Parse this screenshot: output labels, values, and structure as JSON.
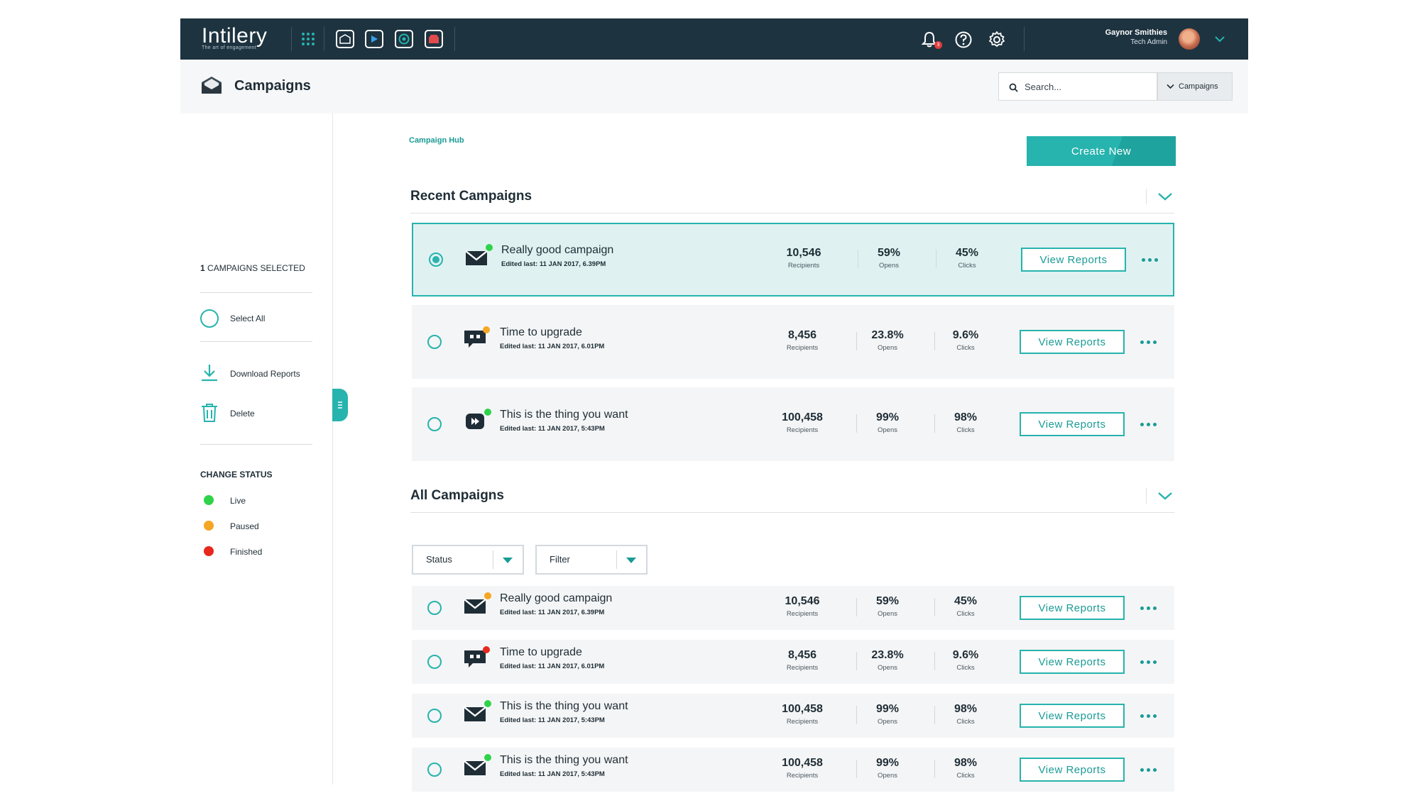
{
  "colors": {
    "topbar": "#1e3340",
    "accent": "#27b3ae",
    "live": "#2fd34a",
    "paused": "#f5a623",
    "finished": "#e8271d"
  },
  "topbar": {
    "logo_name": "Intilery",
    "logo_tagline": "The art of engagement",
    "apps": [
      "campaign-app-icon",
      "media-app-icon",
      "target-app-icon",
      "alert-app-icon"
    ],
    "notification_count": "3",
    "user_name": "Gaynor Smithies",
    "user_role": "Tech Admin"
  },
  "header": {
    "title": "Campaigns",
    "search_placeholder": "Search...",
    "search_scope": "Campaigns"
  },
  "sidebar": {
    "selected_count": "1",
    "selected_label": "CAMPAIGNS SELECTED",
    "select_all": "Select All",
    "download_reports": "Download Reports",
    "delete": "Delete",
    "change_status": "CHANGE STATUS",
    "statuses": [
      {
        "label": "Live",
        "color": "#2fd34a"
      },
      {
        "label": "Paused",
        "color": "#f5a623"
      },
      {
        "label": "Finished",
        "color": "#e8271d"
      }
    ]
  },
  "main": {
    "breadcrumb": "Campaign Hub",
    "create_new": "Create New",
    "recent_title": "Recent Campaigns",
    "all_title": "All Campaigns",
    "status_select": "Status",
    "filter_select": "Filter",
    "view_reports": "View Reports",
    "recipients_label": "Recipients",
    "opens_label": "Opens",
    "clicks_label": "Clicks",
    "recent": [
      {
        "name": "Really good campaign",
        "edited": "Edited last: 11 JAN 2017, 6.39PM",
        "recipients": "10,546",
        "opens": "59%",
        "clicks": "45%",
        "type": "email",
        "status": "live",
        "selected": true
      },
      {
        "name": "Time to upgrade",
        "edited": "Edited last: 11 JAN 2017, 6.01PM",
        "recipients": "8,456",
        "opens": "23.8%",
        "clicks": "9.6%",
        "type": "chat",
        "status": "paused",
        "selected": false
      },
      {
        "name": "This is the thing you want",
        "edited": "Edited last: 11 JAN 2017, 5:43PM",
        "recipients": "100,458",
        "opens": "99%",
        "clicks": "98%",
        "type": "video",
        "status": "live",
        "selected": false
      }
    ],
    "all": [
      {
        "name": "Really good campaign",
        "edited": "Edited last: 11 JAN 2017, 6.39PM",
        "recipients": "10,546",
        "opens": "59%",
        "clicks": "45%",
        "type": "email",
        "status": "paused"
      },
      {
        "name": "Time to upgrade",
        "edited": "Edited last: 11 JAN 2017, 6.01PM",
        "recipients": "8,456",
        "opens": "23.8%",
        "clicks": "9.6%",
        "type": "chat",
        "status": "finished"
      },
      {
        "name": "This is the thing you want",
        "edited": "Edited last: 11 JAN 2017, 5:43PM",
        "recipients": "100,458",
        "opens": "99%",
        "clicks": "98%",
        "type": "email",
        "status": "live"
      },
      {
        "name": "This is the thing you want",
        "edited": "Edited last: 11 JAN 2017, 5:43PM",
        "recipients": "100,458",
        "opens": "99%",
        "clicks": "98%",
        "type": "email",
        "status": "live"
      }
    ]
  }
}
